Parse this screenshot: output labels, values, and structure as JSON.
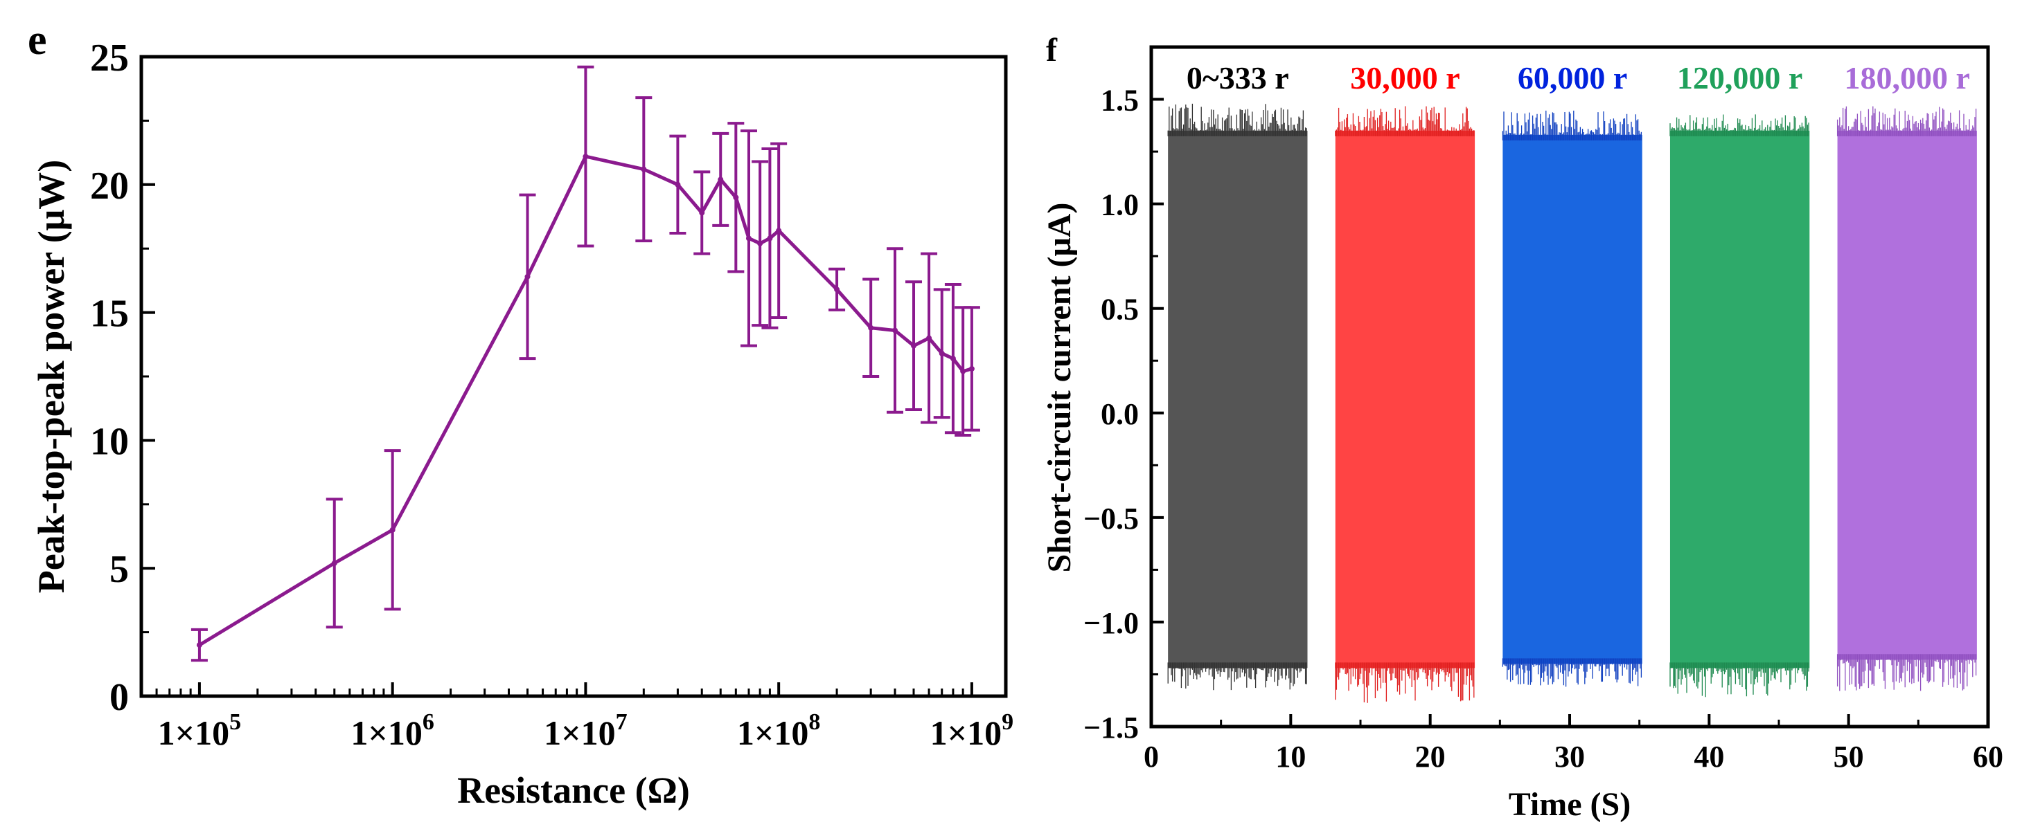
{
  "chart_data": [
    {
      "panel_label": "e",
      "type": "line",
      "title": "",
      "xlabel": "Resistance (Ω)",
      "ylabel": "Peak-top-peak power (μW)",
      "xscale": "log",
      "xlim": [
        50000,
        1500000000
      ],
      "ylim": [
        0,
        25
      ],
      "grid": false,
      "color": "#8B1A8E",
      "xticks": [
        {
          "value": 100000,
          "base": "1×10",
          "exp": "5"
        },
        {
          "value": 1000000,
          "base": "1×10",
          "exp": "6"
        },
        {
          "value": 10000000,
          "base": "1×10",
          "exp": "7"
        },
        {
          "value": 100000000,
          "base": "1×10",
          "exp": "8"
        },
        {
          "value": 1000000000,
          "base": "1×10",
          "exp": "9"
        }
      ],
      "yticks": [
        "0",
        "5",
        "10",
        "15",
        "20",
        "25"
      ],
      "x": [
        100000,
        500000,
        1000000,
        5000000,
        10000000,
        20000000,
        30000000,
        40000000,
        50000000,
        60000000,
        70000000,
        80000000,
        90000000,
        100000000,
        200000000,
        300000000,
        400000000,
        500000000,
        600000000,
        700000000,
        800000000,
        900000000,
        1000000000
      ],
      "y": [
        2.0,
        5.2,
        6.5,
        16.4,
        21.1,
        20.6,
        20.0,
        18.9,
        20.2,
        19.5,
        17.9,
        17.7,
        17.9,
        18.2,
        15.9,
        14.4,
        14.3,
        13.7,
        14.0,
        13.4,
        13.2,
        12.7,
        12.8
      ],
      "yerr": [
        0.6,
        2.5,
        3.1,
        3.2,
        3.5,
        2.8,
        1.9,
        1.6,
        1.8,
        2.9,
        4.2,
        3.2,
        3.5,
        3.4,
        0.8,
        1.9,
        3.2,
        2.5,
        3.3,
        2.5,
        2.9,
        2.5,
        2.4
      ]
    },
    {
      "panel_label": "f",
      "type": "area",
      "title": "",
      "xlabel": "Time (S)",
      "ylabel": "Short-circuit current (μA)",
      "xlim": [
        0,
        60
      ],
      "ylim": [
        -1.5,
        1.75
      ],
      "grid": false,
      "xticks": [
        "0",
        "10",
        "20",
        "30",
        "40",
        "50",
        "60"
      ],
      "yticks": [
        "1.5",
        "1.0",
        "0.5",
        "0.0",
        "−0.5",
        "−1.0",
        "−1.5"
      ],
      "ytick_values": [
        1.5,
        1.0,
        0.5,
        0.0,
        -0.5,
        -1.0,
        -1.5
      ],
      "series": [
        {
          "name": "0~333 r",
          "t_start": 1.2,
          "t_end": 11.2,
          "max": 1.35,
          "min": -1.22,
          "peak_max": 1.48,
          "peak_min": -1.33,
          "color": "#555555",
          "noise_color": "#333333",
          "label_color": "#000000"
        },
        {
          "name": "30,000 r",
          "t_start": 13.2,
          "t_end": 23.2,
          "max": 1.35,
          "min": -1.22,
          "peak_max": 1.47,
          "peak_min": -1.39,
          "color": "#FF4444",
          "noise_color": "#E02020",
          "label_color": "#FF0000"
        },
        {
          "name": "60,000 r",
          "t_start": 25.2,
          "t_end": 35.2,
          "max": 1.33,
          "min": -1.2,
          "peak_max": 1.45,
          "peak_min": -1.32,
          "color": "#1A66E0",
          "noise_color": "#1040C0",
          "label_color": "#0022DD"
        },
        {
          "name": "120,000 r",
          "t_start": 37.2,
          "t_end": 47.2,
          "max": 1.35,
          "min": -1.22,
          "peak_max": 1.43,
          "peak_min": -1.36,
          "color": "#2EAA6A",
          "noise_color": "#1F8A50",
          "label_color": "#1FA05A"
        },
        {
          "name": "180,000 r",
          "t_start": 49.2,
          "t_end": 59.2,
          "max": 1.35,
          "min": -1.18,
          "peak_max": 1.47,
          "peak_min": -1.33,
          "color": "#B070DD",
          "noise_color": "#9050C0",
          "label_color": "#A86CD8"
        }
      ]
    }
  ]
}
